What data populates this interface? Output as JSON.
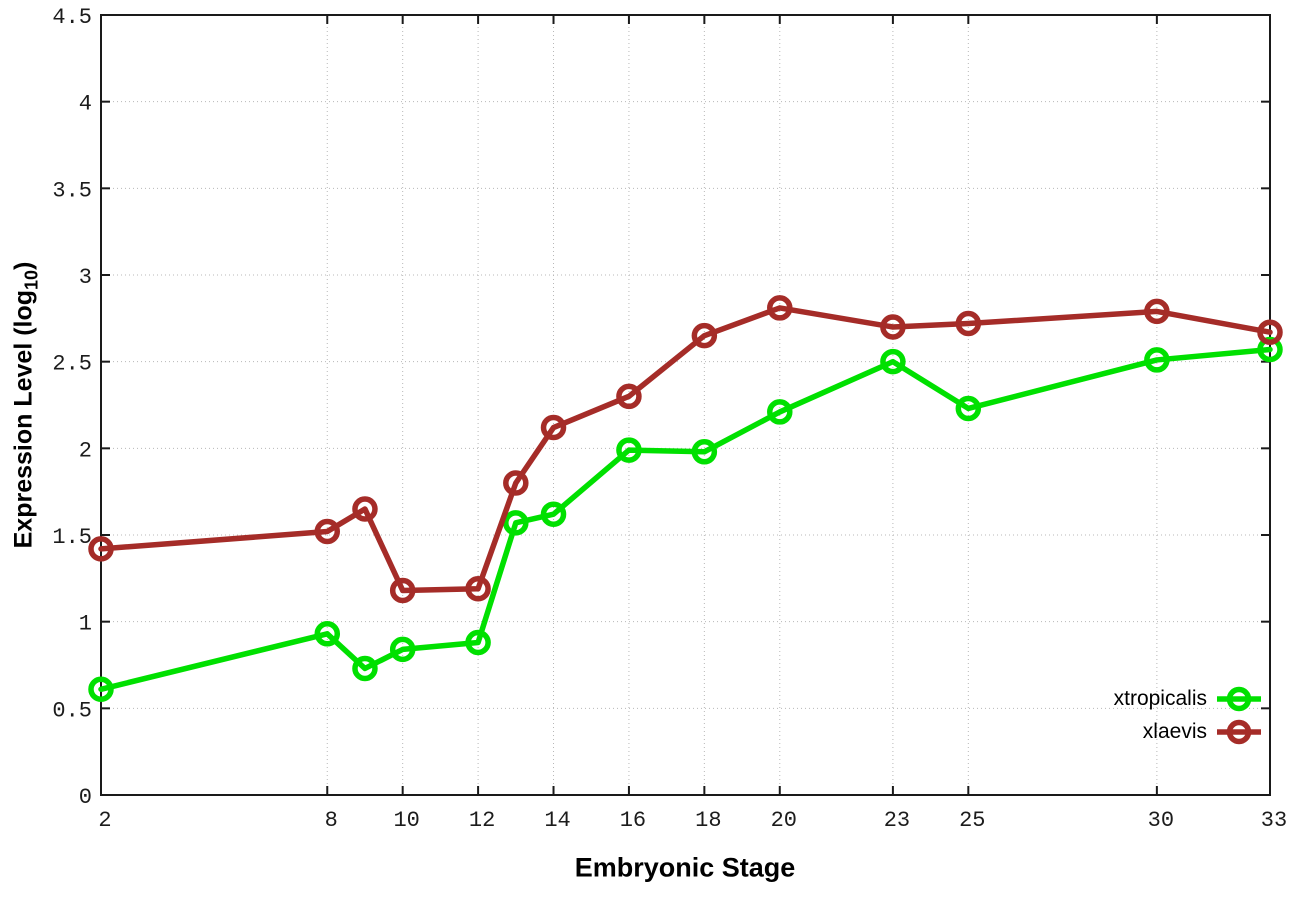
{
  "chart_data": {
    "type": "line",
    "title": "",
    "xlabel": "Embryonic Stage",
    "ylabel": "Expression Level (log10)",
    "ylabel_parts": {
      "pre": "Expression Level (log",
      "sub": "10",
      "post": ")"
    },
    "xlim": [
      2,
      33
    ],
    "ylim": [
      0,
      4.5
    ],
    "x_ticks": [
      2,
      8,
      10,
      12,
      14,
      16,
      18,
      20,
      23,
      25,
      30,
      33
    ],
    "y_ticks": [
      0,
      0.5,
      1,
      1.5,
      2,
      2.5,
      3,
      3.5,
      4,
      4.5
    ],
    "grid": true,
    "legend_position": "bottom-right",
    "x": [
      2,
      8,
      9,
      10,
      12,
      13,
      14,
      16,
      18,
      20,
      23,
      25,
      30,
      33
    ],
    "series": [
      {
        "name": "xtropicalis",
        "color": "#00e000",
        "values": [
          0.61,
          0.93,
          0.73,
          0.84,
          0.88,
          1.57,
          1.62,
          1.99,
          1.98,
          2.21,
          2.5,
          2.23,
          2.51,
          2.57
        ]
      },
      {
        "name": "xlaevis",
        "color": "#a52c28",
        "values": [
          1.42,
          1.52,
          1.65,
          1.18,
          1.19,
          1.8,
          2.12,
          2.3,
          2.65,
          2.81,
          2.7,
          2.72,
          2.79,
          2.67
        ]
      }
    ],
    "colors": {
      "grid": "#b8b8b8",
      "axis": "#1a1a1a",
      "tick_text": "#1c1c1c"
    }
  }
}
